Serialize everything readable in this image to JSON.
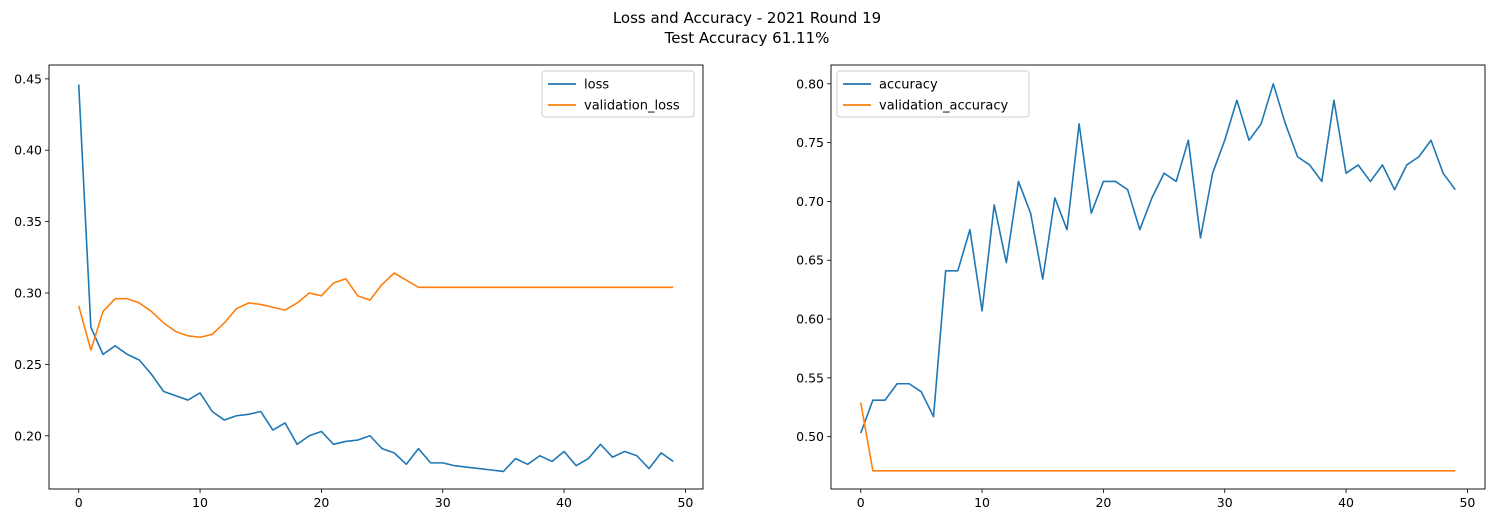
{
  "figure": {
    "title_line1": "Loss and Accuracy - 2021 Round 19",
    "title_line2": "Test Accuracy 61.11%"
  },
  "colors": {
    "blue": "#1f77b4",
    "orange": "#ff7f0e"
  },
  "chart_data": [
    {
      "type": "line",
      "title": "",
      "xlabel": "",
      "ylabel": "",
      "xlim": [
        -2.45,
        51.45
      ],
      "ylim": [
        0.1627,
        0.4597
      ],
      "xticks": [
        0,
        10,
        20,
        30,
        40,
        50
      ],
      "yticks": [
        0.2,
        0.25,
        0.3,
        0.35,
        0.4,
        0.45
      ],
      "ytick_labels": [
        "0.20",
        "0.25",
        "0.30",
        "0.35",
        "0.40",
        "0.45"
      ],
      "legend_position": "upper right",
      "x": [
        0,
        1,
        2,
        3,
        4,
        5,
        6,
        7,
        8,
        9,
        10,
        11,
        12,
        13,
        14,
        15,
        16,
        17,
        18,
        19,
        20,
        21,
        22,
        23,
        24,
        25,
        26,
        27,
        28,
        29,
        30,
        31,
        32,
        33,
        34,
        35,
        36,
        37,
        38,
        39,
        40,
        41,
        42,
        43,
        44,
        45,
        46,
        47,
        48,
        49
      ],
      "series": [
        {
          "name": "loss",
          "color": "#1f77b4",
          "values": [
            0.446,
            0.276,
            0.257,
            0.263,
            0.257,
            0.253,
            0.243,
            0.231,
            0.228,
            0.225,
            0.23,
            0.217,
            0.211,
            0.214,
            0.215,
            0.217,
            0.204,
            0.209,
            0.194,
            0.2,
            0.203,
            0.194,
            0.196,
            0.197,
            0.2,
            0.191,
            0.188,
            0.18,
            0.191,
            0.181,
            0.181,
            0.179,
            0.178,
            0.177,
            0.176,
            0.175,
            0.184,
            0.18,
            0.186,
            0.182,
            0.189,
            0.179,
            0.184,
            0.194,
            0.185,
            0.189,
            0.186,
            0.177,
            0.188,
            0.182
          ]
        },
        {
          "name": "validation_loss",
          "color": "#ff7f0e",
          "values": [
            0.291,
            0.26,
            0.287,
            0.296,
            0.296,
            0.293,
            0.287,
            0.279,
            0.273,
            0.27,
            0.269,
            0.271,
            0.279,
            0.289,
            0.293,
            0.292,
            0.29,
            0.288,
            0.293,
            0.3,
            0.298,
            0.307,
            0.31,
            0.298,
            0.295,
            0.306,
            0.314,
            0.309,
            0.304,
            0.304,
            0.304,
            0.304,
            0.304,
            0.304,
            0.304,
            0.304,
            0.304,
            0.304,
            0.304,
            0.304,
            0.304,
            0.304,
            0.304,
            0.304,
            0.304,
            0.304,
            0.304,
            0.304,
            0.304,
            0.304
          ]
        }
      ]
    },
    {
      "type": "line",
      "title": "",
      "xlabel": "",
      "ylabel": "",
      "xlim": [
        -2.45,
        51.45
      ],
      "ylim": [
        0.4555,
        0.816
      ],
      "xticks": [
        0,
        10,
        20,
        30,
        40,
        50
      ],
      "yticks": [
        0.5,
        0.55,
        0.6,
        0.65,
        0.7,
        0.75,
        0.8
      ],
      "ytick_labels": [
        "0.50",
        "0.55",
        "0.60",
        "0.65",
        "0.70",
        "0.75",
        "0.80"
      ],
      "legend_position": "upper left",
      "x": [
        0,
        1,
        2,
        3,
        4,
        5,
        6,
        7,
        8,
        9,
        10,
        11,
        12,
        13,
        14,
        15,
        16,
        17,
        18,
        19,
        20,
        21,
        22,
        23,
        24,
        25,
        26,
        27,
        28,
        29,
        30,
        31,
        32,
        33,
        34,
        35,
        36,
        37,
        38,
        39,
        40,
        41,
        42,
        43,
        44,
        45,
        46,
        47,
        48,
        49
      ],
      "series": [
        {
          "name": "accuracy",
          "color": "#1f77b4",
          "values": [
            0.503,
            0.531,
            0.531,
            0.545,
            0.545,
            0.538,
            0.517,
            0.641,
            0.641,
            0.676,
            0.607,
            0.697,
            0.648,
            0.717,
            0.69,
            0.634,
            0.703,
            0.676,
            0.766,
            0.69,
            0.717,
            0.717,
            0.71,
            0.676,
            0.703,
            0.724,
            0.717,
            0.752,
            0.669,
            0.724,
            0.752,
            0.786,
            0.752,
            0.766,
            0.8,
            0.766,
            0.738,
            0.731,
            0.717,
            0.786,
            0.724,
            0.731,
            0.717,
            0.731,
            0.71,
            0.731,
            0.738,
            0.752,
            0.724,
            0.71
          ]
        },
        {
          "name": "validation_accuracy",
          "color": "#ff7f0e",
          "values": [
            0.529,
            0.471,
            0.471,
            0.471,
            0.471,
            0.471,
            0.471,
            0.471,
            0.471,
            0.471,
            0.471,
            0.471,
            0.471,
            0.471,
            0.471,
            0.471,
            0.471,
            0.471,
            0.471,
            0.471,
            0.471,
            0.471,
            0.471,
            0.471,
            0.471,
            0.471,
            0.471,
            0.471,
            0.471,
            0.471,
            0.471,
            0.471,
            0.471,
            0.471,
            0.471,
            0.471,
            0.471,
            0.471,
            0.471,
            0.471,
            0.471,
            0.471,
            0.471,
            0.471,
            0.471,
            0.471,
            0.471,
            0.471,
            0.471,
            0.471
          ]
        }
      ]
    }
  ]
}
